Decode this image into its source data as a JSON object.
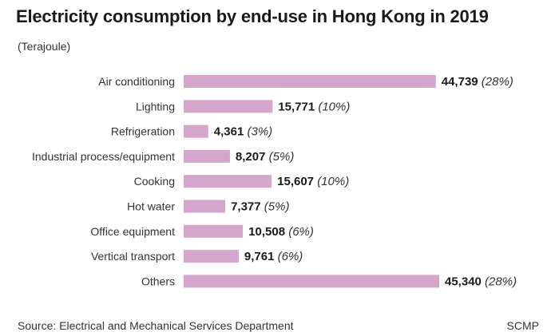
{
  "header": {
    "title": "Electricity consumption by end-use in Hong Kong in 2019",
    "unit": "(Terajoule)"
  },
  "footer": {
    "source": "Source: Electrical and Mechanical Services Department",
    "credit": "SCMP"
  },
  "chart_data": {
    "type": "bar",
    "orientation": "horizontal",
    "categories": [
      "Air conditioning",
      "Lighting",
      "Refrigeration",
      "Industrial process/equipment",
      "Cooking",
      "Hot water",
      "Office equipment",
      "Vertical transport",
      "Others"
    ],
    "values": [
      44739,
      15771,
      4361,
      8207,
      15607,
      7377,
      10508,
      9761,
      45340
    ],
    "value_labels": [
      "44,739",
      "15,771",
      "4,361",
      "8,207",
      "15,607",
      "7,377",
      "10,508",
      "9,761",
      "45,340"
    ],
    "percent_labels": [
      "(28%)",
      "(10%)",
      "(3%)",
      "(5%)",
      "(10%)",
      "(5%)",
      "(6%)",
      "(6%)",
      "(28%)"
    ],
    "bar_color": "#d4a6cc",
    "grid": false,
    "legend": "none"
  }
}
